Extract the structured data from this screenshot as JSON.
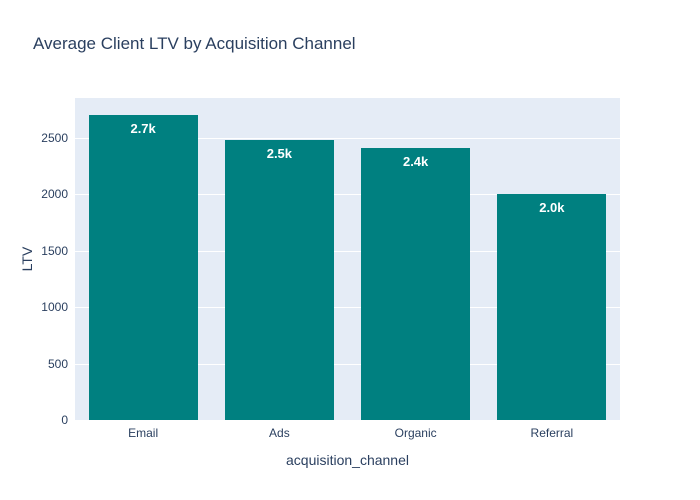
{
  "chart_data": {
    "type": "bar",
    "title": "Average Client LTV by Acquisition Channel",
    "categories": [
      "Email",
      "Ads",
      "Organic",
      "Referral"
    ],
    "values": [
      2700,
      2480,
      2410,
      2000
    ],
    "bar_labels": [
      "2.7k",
      "2.5k",
      "2.4k",
      "2.0k"
    ],
    "xlabel": "acquisition_channel",
    "ylabel": "LTV",
    "yticks": [
      0,
      500,
      1000,
      1500,
      2000,
      2500
    ],
    "ylim": [
      0,
      2850
    ],
    "grid": true,
    "legend": false,
    "bargap": 0.2,
    "colors": {
      "bar": "#008080",
      "bar_label": "#ffffff",
      "plot_background": "#e5ecf6",
      "gridline": "#ffffff",
      "text": "#2a3f5f",
      "page_background": "#ffffff"
    }
  }
}
